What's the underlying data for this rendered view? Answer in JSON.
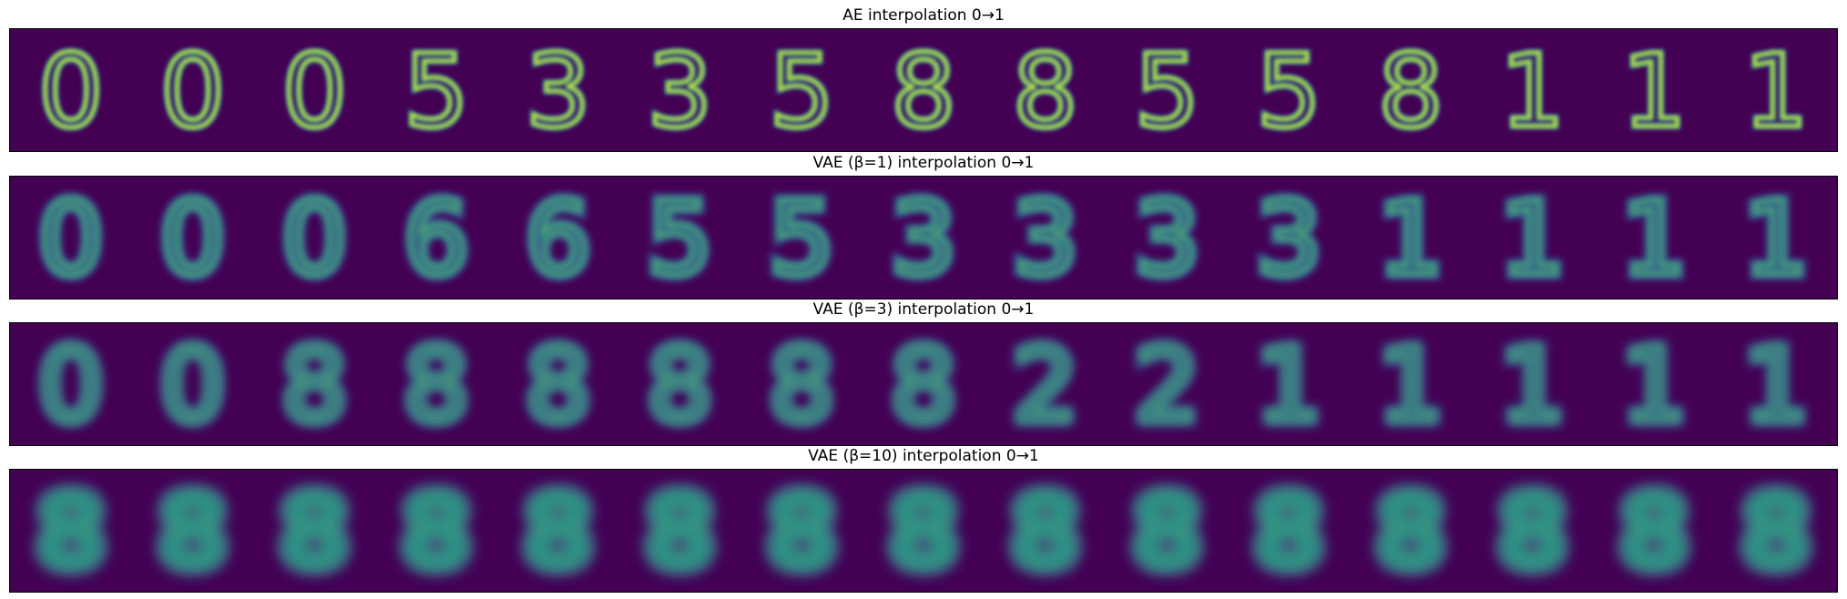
{
  "colors": {
    "background": "#440154",
    "low": "#3b528b",
    "mid": "#21918c",
    "high": "#5ec962",
    "peak": "#fde725"
  },
  "panels": [
    {
      "title": "AE interpolation 0→1",
      "digits": [
        "0",
        "0",
        "0",
        "5",
        "3",
        "3",
        "5",
        "8",
        "8",
        "5",
        "5",
        "8",
        "1",
        "1",
        "1"
      ],
      "blur": "sharp"
    },
    {
      "title": "VAE (β=1) interpolation 0→1",
      "digits": [
        "0",
        "0",
        "0",
        "6",
        "6",
        "5",
        "5",
        "3",
        "3",
        "3",
        "3",
        "1",
        "1",
        "1",
        "1"
      ],
      "blur": "soft"
    },
    {
      "title": "VAE (β=3) interpolation 0→1",
      "digits": [
        "0",
        "0",
        "8",
        "8",
        "8",
        "8",
        "8",
        "8",
        "2",
        "2",
        "1",
        "1",
        "1",
        "1",
        "1"
      ],
      "blur": "blurry"
    },
    {
      "title": "VAE (β=10) interpolation 0→1",
      "digits": [
        "8",
        "8",
        "8",
        "8",
        "8",
        "8",
        "8",
        "8",
        "8",
        "8",
        "8",
        "8",
        "8",
        "8",
        "8"
      ],
      "blur": "very blurry"
    }
  ]
}
